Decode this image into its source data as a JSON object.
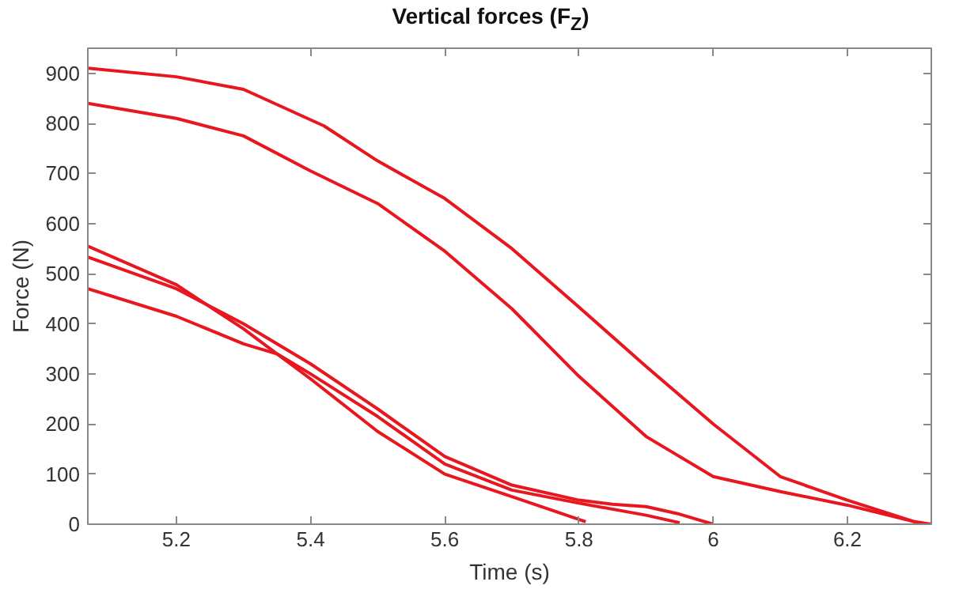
{
  "chart_data": {
    "type": "line",
    "title": "Vertical forces (F$_{Z}$)",
    "xlabel": "Time (s)",
    "ylabel": "Force (N)",
    "xlim": [
      5.068,
      6.325
    ],
    "xticks": [
      5.2,
      5.4,
      5.6,
      5.8,
      {
        "value": 6.0,
        "label": "6"
      },
      6.2
    ],
    "ylim": [
      0,
      950
    ],
    "yticks": [
      0,
      100,
      200,
      300,
      400,
      500,
      600,
      700,
      800,
      900
    ],
    "grid": false,
    "line_style": "solid",
    "marker": "none",
    "series": [
      {
        "color": "#e8171f",
        "x": [
          5.068,
          5.2,
          5.3,
          5.42,
          5.5,
          5.6,
          5.7,
          5.8,
          5.9,
          6.0,
          6.1,
          6.2,
          6.3,
          6.325
        ],
        "values": [
          910,
          893,
          868,
          795,
          725,
          650,
          550,
          433,
          315,
          200,
          95,
          48,
          5,
          0
        ]
      },
      {
        "color": "#e8171f",
        "x": [
          5.068,
          5.2,
          5.3,
          5.4,
          5.5,
          5.6,
          5.7,
          5.8,
          5.9,
          6.0,
          6.1,
          6.2,
          6.3
        ],
        "values": [
          840,
          810,
          775,
          705,
          640,
          545,
          430,
          295,
          175,
          95,
          65,
          38,
          5
        ]
      },
      {
        "color": "#e8171f",
        "x": [
          5.068,
          5.2,
          5.3,
          5.35,
          5.4,
          5.5,
          5.6,
          5.7,
          5.81
        ],
        "values": [
          555,
          478,
          390,
          340,
          290,
          185,
          100,
          55,
          5
        ]
      },
      {
        "color": "#e8171f",
        "x": [
          5.068,
          5.2,
          5.3,
          5.4,
          5.5,
          5.6,
          5.7,
          5.8,
          5.85,
          5.9,
          5.95,
          6.0
        ],
        "values": [
          533,
          470,
          400,
          320,
          230,
          135,
          78,
          48,
          40,
          35,
          20,
          0
        ]
      },
      {
        "color": "#e8171f",
        "x": [
          5.068,
          5.2,
          5.3,
          5.35,
          5.4,
          5.5,
          5.6,
          5.7,
          5.8,
          5.9,
          5.95
        ],
        "values": [
          470,
          415,
          360,
          340,
          300,
          215,
          120,
          68,
          42,
          18,
          3
        ]
      }
    ]
  }
}
